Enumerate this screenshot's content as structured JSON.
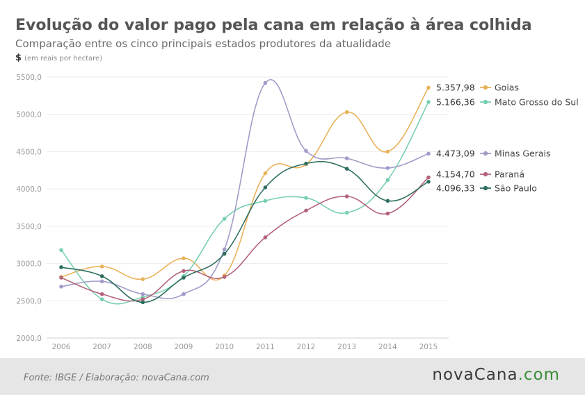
{
  "header": {
    "title": "Evolução do valor pago pela cana em relação à área colhida",
    "subtitle": "Comparação entre os cinco principais estados produtores da atualidade",
    "unit_symbol": "$",
    "unit_text": "(em reais por hectare)"
  },
  "footer": {
    "source": "Fonte:  IBGE / Elaboração:  novaCana.com",
    "logo_part1": "nova",
    "logo_part2": "Cana",
    "logo_part3": ".com"
  },
  "chart_data": {
    "type": "line",
    "x": [
      "2006",
      "2007",
      "2008",
      "2009",
      "2010",
      "2011",
      "2012",
      "2013",
      "2014",
      "2015"
    ],
    "yticks": [
      "2000,0",
      "2500,0",
      "3000,0",
      "3500,0",
      "4000,0",
      "4500,0",
      "5000,0",
      "5500,0"
    ],
    "ylim": [
      2000,
      5500
    ],
    "grid": true,
    "legend_position": "right",
    "series": [
      {
        "name": "Goias",
        "color": "#e9b25a",
        "end_label": "5.357,98",
        "values": [
          2820,
          2960,
          2790,
          3070,
          2840,
          4210,
          4330,
          5030,
          4500,
          5358
        ]
      },
      {
        "name": "Mato Grosso do Sul",
        "color": "#78cfb0",
        "end_label": "5.166,36",
        "values": [
          3180,
          2520,
          2550,
          2830,
          3600,
          3840,
          3880,
          3680,
          4120,
          5166
        ]
      },
      {
        "name": "Minas Gerais",
        "color": "#a09cc9",
        "end_label": "4.473,09",
        "values": [
          2690,
          2760,
          2590,
          2590,
          3190,
          5420,
          4510,
          4410,
          4280,
          4473
        ]
      },
      {
        "name": "Paraná",
        "color": "#b4637a",
        "end_label": "4.154,70",
        "values": [
          2810,
          2590,
          2520,
          2900,
          2820,
          3350,
          3710,
          3900,
          3670,
          4155
        ]
      },
      {
        "name": "São Paulo",
        "color": "#2f6f62",
        "end_label": "4.096,33",
        "values": [
          2950,
          2830,
          2480,
          2810,
          3130,
          4020,
          4340,
          4270,
          3840,
          4096
        ]
      }
    ]
  }
}
